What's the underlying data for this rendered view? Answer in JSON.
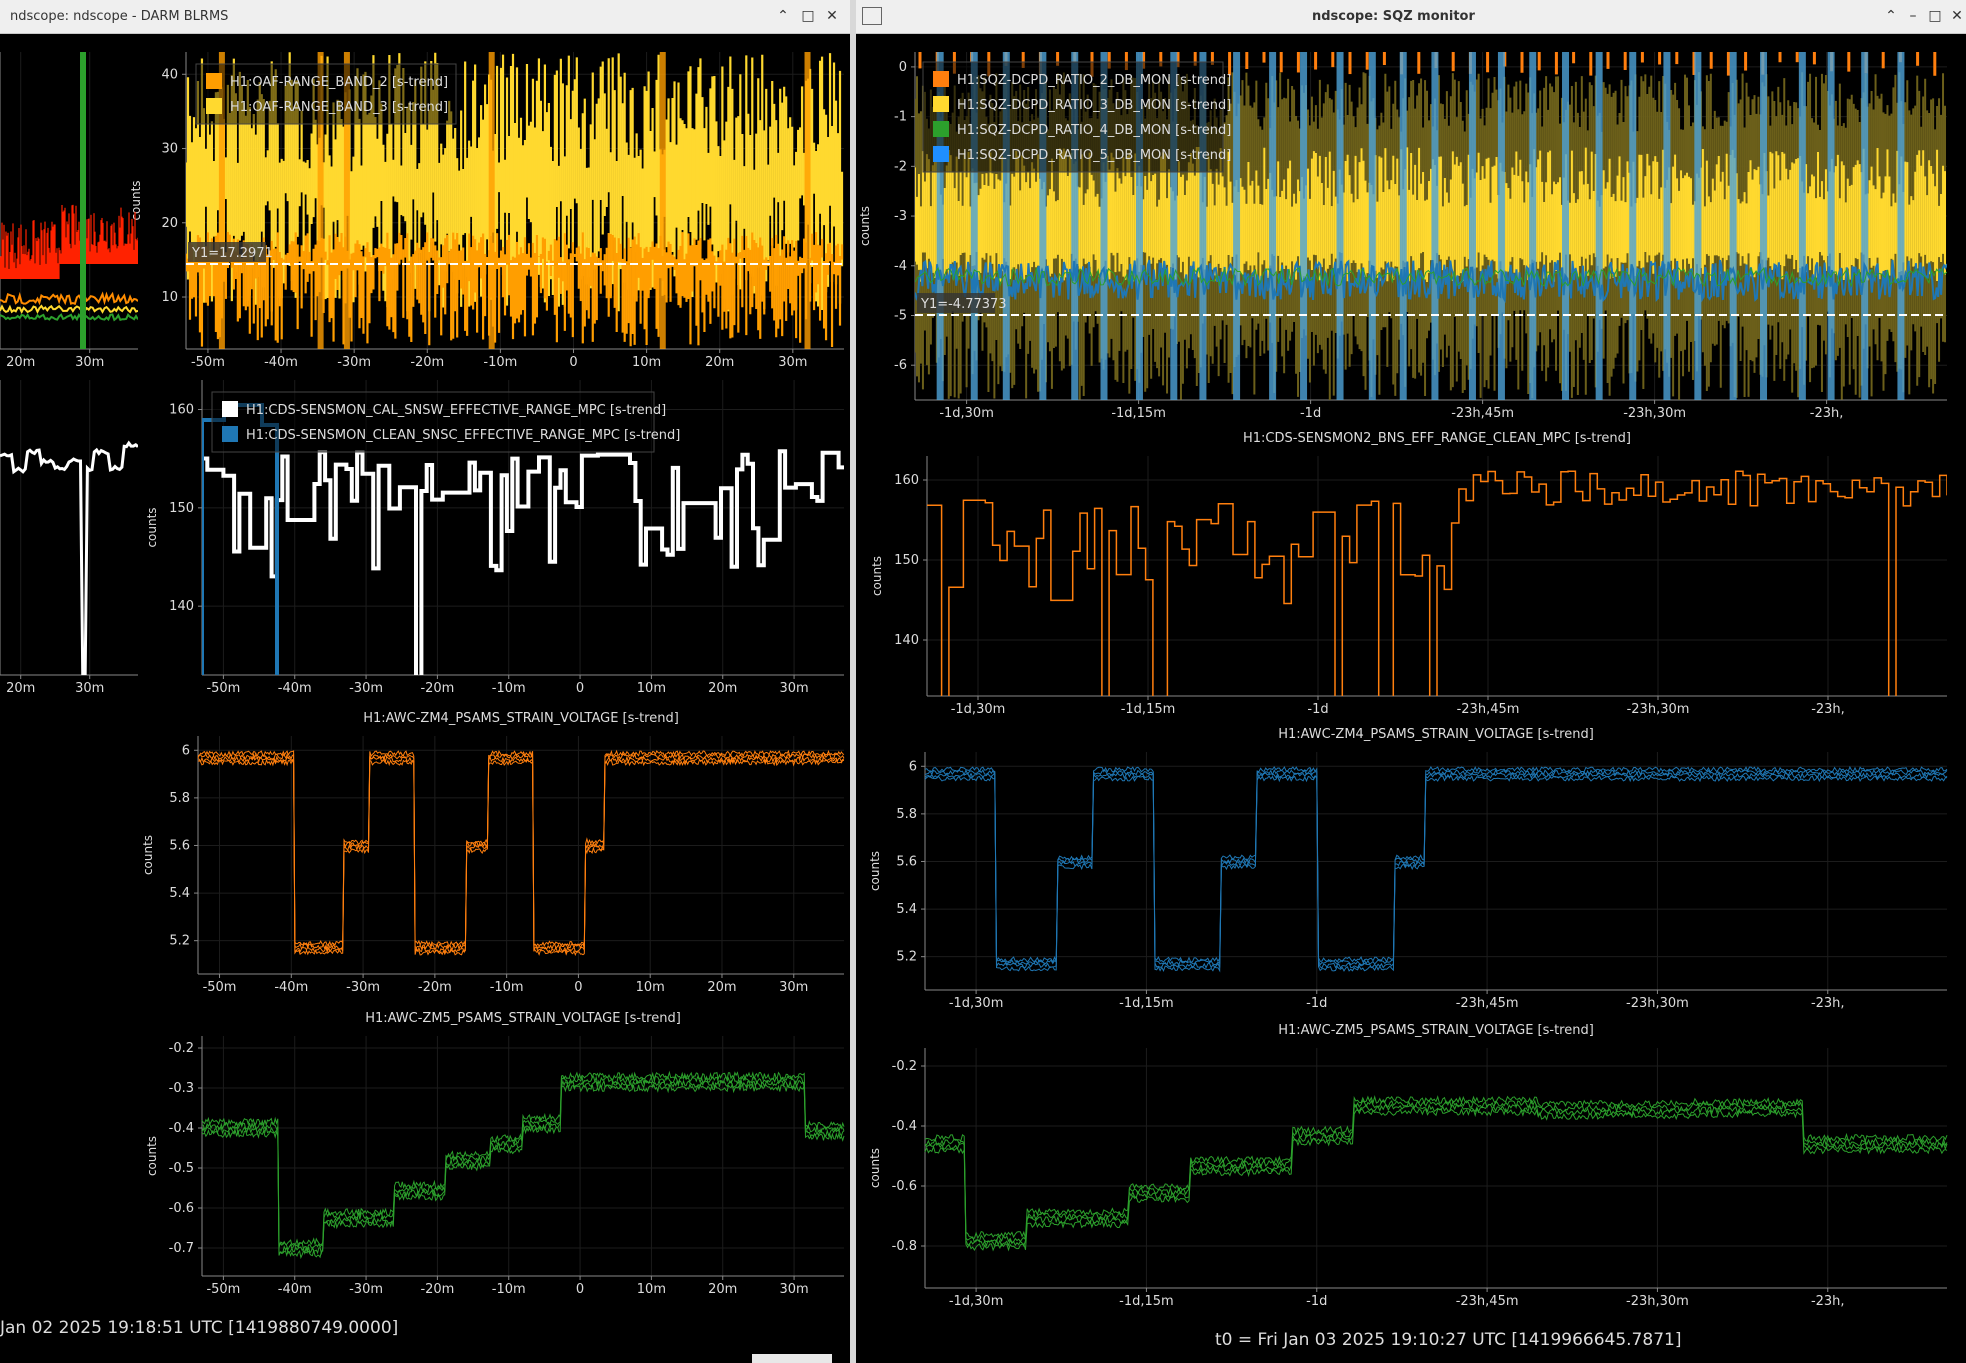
{
  "windows": {
    "left": {
      "title": "ndscope: ndscope - DARM BLRMS",
      "t0": "Jan 02 2025 19:18:51 UTC [1419880749.0000]"
    },
    "right": {
      "title": "ndscope: SQZ monitor",
      "t0": "t0 = Fri Jan 03 2025 19:10:27 UTC [1419966645.7871]"
    }
  },
  "plots": {
    "L_oaf": {
      "ylabel": "counts",
      "yticks": [
        "40",
        "30",
        "20",
        "10"
      ],
      "xticks": [
        "-50m",
        "-40m",
        "-30m",
        "-20m",
        "-10m",
        "0",
        "10m",
        "20m",
        "30m"
      ],
      "legend": [
        "H1:OAF-RANGE_BAND_2 [s-trend]",
        "H1:OAF-RANGE_BAND_3 [s-trend]"
      ],
      "cursor": "Y1=17.2971"
    },
    "L_topleft": {
      "xticks": [
        "20m",
        "30m"
      ]
    },
    "L_midleft": {
      "xticks": [
        "20m",
        "30m"
      ]
    },
    "L_sensmon": {
      "ylabel": "counts",
      "yticks": [
        "160",
        "150",
        "140"
      ],
      "xticks": [
        "-50m",
        "-40m",
        "-30m",
        "-20m",
        "-10m",
        "0",
        "10m",
        "20m",
        "30m"
      ],
      "legend": [
        "H1:CDS-SENSMON_CAL_SNSW_EFFECTIVE_RANGE_MPC [s-trend]",
        "H1:CDS-SENSMON_CLEAN_SNSC_EFFECTIVE_RANGE_MPC [s-trend]"
      ]
    },
    "L_zm4": {
      "title": "H1:AWC-ZM4_PSAMS_STRAIN_VOLTAGE [s-trend]",
      "ylabel": "counts",
      "yticks": [
        "6",
        "5.8",
        "5.6",
        "5.4",
        "5.2"
      ],
      "xticks": [
        "-50m",
        "-40m",
        "-30m",
        "-20m",
        "-10m",
        "0",
        "10m",
        "20m",
        "30m"
      ]
    },
    "L_zm5": {
      "title": "H1:AWC-ZM5_PSAMS_STRAIN_VOLTAGE [s-trend]",
      "ylabel": "counts",
      "yticks": [
        "-0.2",
        "-0.3",
        "-0.4",
        "-0.5",
        "-0.6",
        "-0.7"
      ],
      "xticks": [
        "-50m",
        "-40m",
        "-30m",
        "-20m",
        "-10m",
        "0",
        "10m",
        "20m",
        "30m"
      ]
    },
    "R_sqz": {
      "ylabel": "counts",
      "yticks": [
        "0",
        "-1",
        "-2",
        "-3",
        "-4",
        "-5",
        "-6"
      ],
      "xticks": [
        "-1d,30m",
        "-1d,15m",
        "-1d",
        "-23h,45m",
        "-23h,30m",
        "-23h,"
      ],
      "legend": [
        "H1:SQZ-DCPD_RATIO_2_DB_MON [s-trend]",
        "H1:SQZ-DCPD_RATIO_3_DB_MON [s-trend]",
        "H1:SQZ-DCPD_RATIO_4_DB_MON [s-trend]",
        "H1:SQZ-DCPD_RATIO_5_DB_MON [s-trend]"
      ],
      "cursor": "Y1=-4.77373"
    },
    "R_bns": {
      "title": "H1:CDS-SENSMON2_BNS_EFF_RANGE_CLEAN_MPC [s-trend]",
      "ylabel": "counts",
      "yticks": [
        "160",
        "150",
        "140"
      ],
      "xticks": [
        "-1d,30m",
        "-1d,15m",
        "-1d",
        "-23h,45m",
        "-23h,30m",
        "-23h,"
      ]
    },
    "R_zm4": {
      "title": "H1:AWC-ZM4_PSAMS_STRAIN_VOLTAGE [s-trend]",
      "ylabel": "counts",
      "yticks": [
        "6",
        "5.8",
        "5.6",
        "5.4",
        "5.2"
      ],
      "xticks": [
        "-1d,30m",
        "-1d,15m",
        "-1d",
        "-23h,45m",
        "-23h,30m",
        "-23h,"
      ]
    },
    "R_zm5": {
      "title": "H1:AWC-ZM5_PSAMS_STRAIN_VOLTAGE [s-trend]",
      "ylabel": "counts",
      "yticks": [
        "-0.2",
        "-0.4",
        "-0.6",
        "-0.8"
      ],
      "xticks": [
        "-1d,30m",
        "-1d,15m",
        "-1d",
        "-23h,45m",
        "-23h,30m",
        "-23h,"
      ]
    }
  },
  "colors": {
    "orange": "#ff7f0e",
    "yellow": "#ffd92f",
    "amber": "#ff9e00",
    "green": "#2ca02c",
    "blue": "#1f77b4",
    "white": "#ffffff",
    "red": "#ff2200",
    "olive": "#6b5f1a",
    "cursor": "#ffffff"
  },
  "icons": {
    "min": "minimize-icon",
    "max": "maximize-icon",
    "close": "close-icon"
  }
}
